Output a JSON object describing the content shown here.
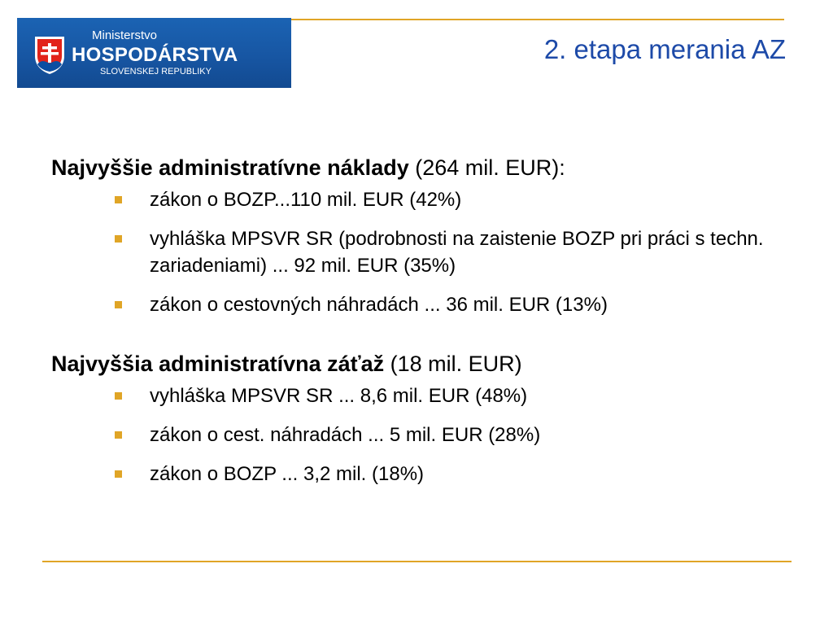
{
  "logo": {
    "line1": "Ministerstvo",
    "line2": "HOSPODÁRSTVA",
    "line3": "SLOVENSKEJ REPUBLIKY",
    "crest_icon": "slovak-coat-of-arms-icon"
  },
  "title": "2. etapa merania AZ",
  "sections": [
    {
      "heading_bold": "Najvyššie administratívne náklady",
      "heading_rest": " (264 mil. EUR):",
      "items": [
        "zákon o BOZP...110 mil. EUR (42%)",
        "vyhláška MPSVR SR (podrobnosti na zaistenie BOZP pri práci s techn. zariadeniami) ... 92 mil. EUR (35%)",
        "zákon o cestovných náhradách ... 36 mil. EUR (13%)"
      ]
    },
    {
      "heading_bold": "Najvyššia administratívna záťaž",
      "heading_rest": " (18 mil. EUR)",
      "items": [
        "vyhláška MPSVR SR ... 8,6 mil. EUR (48%)",
        "zákon o cest. náhradách ... 5 mil. EUR (28%)",
        "zákon o BOZP ... 3,2 mil. (18%)"
      ]
    }
  ],
  "colors": {
    "accent_rule": "#e0a526",
    "title_blue": "#1d4aa8",
    "logo_blue": "#1756a3",
    "bullet": "#e0a526"
  }
}
